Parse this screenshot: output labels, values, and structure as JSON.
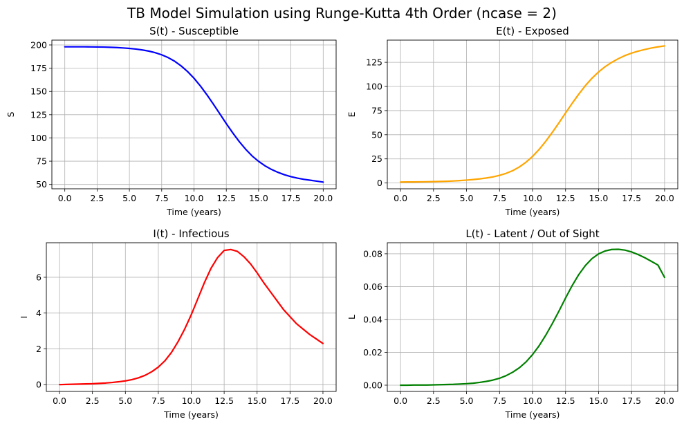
{
  "figure": {
    "suptitle": "TB Model Simulation using Runge-Kutta 4th Order (ncase = 2)"
  },
  "chart_data": [
    {
      "type": "line",
      "title": "S(t) - Susceptible",
      "xlabel": "Time (years)",
      "ylabel": "S",
      "xlim": [
        -1.0,
        21.0
      ],
      "ylim": [
        45.3,
        205.2
      ],
      "grid": true,
      "color": "#0000ff",
      "xticks": [
        0,
        2.5,
        5,
        7.5,
        10,
        12.5,
        15,
        17.5,
        20
      ],
      "xtick_labels": [
        "0.0",
        "2.5",
        "5.0",
        "7.5",
        "10.0",
        "12.5",
        "15.0",
        "17.5",
        "20.0"
      ],
      "yticks": [
        50,
        75,
        100,
        125,
        150,
        175,
        200
      ],
      "ytick_labels": [
        "50",
        "75",
        "100",
        "125",
        "150",
        "175",
        "200"
      ],
      "x": [
        0,
        0.5,
        1,
        1.5,
        2,
        2.5,
        3,
        3.5,
        4,
        4.5,
        5,
        5.5,
        6,
        6.5,
        7,
        7.5,
        8,
        8.5,
        9,
        9.5,
        10,
        10.5,
        11,
        11.5,
        12,
        12.5,
        13,
        13.5,
        14,
        14.5,
        15,
        15.5,
        16,
        16.5,
        17,
        17.5,
        18,
        18.5,
        19,
        19.5,
        20
      ],
      "y": [
        198,
        198,
        198,
        198,
        197.9,
        197.8,
        197.7,
        197.5,
        197.2,
        196.8,
        196.3,
        195.6,
        194.6,
        193.4,
        191.7,
        189.4,
        186.4,
        182.5,
        177.5,
        171.4,
        164.2,
        155.8,
        146.4,
        136.3,
        125.9,
        115.4,
        105.4,
        96.1,
        87.8,
        80.6,
        74.8,
        70.0,
        66.1,
        63.0,
        60.4,
        58.4,
        56.8,
        55.5,
        54.5,
        53.5,
        52.5
      ]
    },
    {
      "type": "line",
      "title": "E(t) - Exposed",
      "xlabel": "Time (years)",
      "ylabel": "E",
      "xlim": [
        -1.0,
        21.0
      ],
      "ylim": [
        -6.0,
        148.0
      ],
      "grid": true,
      "color": "#ffa500",
      "xticks": [
        0,
        2.5,
        5,
        7.5,
        10,
        12.5,
        15,
        17.5,
        20
      ],
      "xtick_labels": [
        "0.0",
        "2.5",
        "5.0",
        "7.5",
        "10.0",
        "12.5",
        "15.0",
        "17.5",
        "20.0"
      ],
      "yticks": [
        0,
        25,
        50,
        75,
        100,
        125
      ],
      "ytick_labels": [
        "0",
        "25",
        "50",
        "75",
        "100",
        "125"
      ],
      "x": [
        0,
        0.5,
        1,
        1.5,
        2,
        2.5,
        3,
        3.5,
        4,
        4.5,
        5,
        5.5,
        6,
        6.5,
        7,
        7.5,
        8,
        8.5,
        9,
        9.5,
        10,
        10.5,
        11,
        11.5,
        12,
        12.5,
        13,
        13.5,
        14,
        14.5,
        15,
        15.5,
        16,
        16.5,
        17,
        17.5,
        18,
        18.5,
        19,
        19.5,
        20
      ],
      "y": [
        1.0,
        1.05,
        1.1,
        1.2,
        1.3,
        1.45,
        1.6,
        1.8,
        2.1,
        2.5,
        3.0,
        3.6,
        4.3,
        5.2,
        6.3,
        7.9,
        10.0,
        12.8,
        16.6,
        21.5,
        27.5,
        34.8,
        43.2,
        52.5,
        62.3,
        72.5,
        82.5,
        92.0,
        100.8,
        108.5,
        115.0,
        120.5,
        125.0,
        128.8,
        132.0,
        134.5,
        136.6,
        138.3,
        139.8,
        141.0,
        142.0
      ]
    },
    {
      "type": "line",
      "title": "I(t) - Infectious",
      "xlabel": "Time (years)",
      "ylabel": "I",
      "xlim": [
        -1.0,
        21.0
      ],
      "ylim": [
        -0.38,
        7.93
      ],
      "grid": true,
      "color": "#ff0000",
      "xticks": [
        0,
        2.5,
        5,
        7.5,
        10,
        12.5,
        15,
        17.5,
        20
      ],
      "xtick_labels": [
        "0.0",
        "2.5",
        "5.0",
        "7.5",
        "10.0",
        "12.5",
        "15.0",
        "17.5",
        "20.0"
      ],
      "yticks": [
        0,
        2,
        4,
        6
      ],
      "ytick_labels": [
        "0",
        "2",
        "4",
        "6"
      ],
      "x": [
        0,
        0.5,
        1,
        1.5,
        2,
        2.5,
        3,
        3.5,
        4,
        4.5,
        5,
        5.5,
        6,
        6.5,
        7,
        7.5,
        8,
        8.5,
        9,
        9.5,
        10,
        10.5,
        11,
        11.5,
        12,
        12.5,
        13,
        13.5,
        14,
        14.5,
        15,
        15.5,
        16,
        16.5,
        17,
        17.5,
        18,
        18.5,
        19,
        19.5,
        20
      ],
      "y": [
        0.0,
        0.01,
        0.02,
        0.03,
        0.04,
        0.05,
        0.07,
        0.09,
        0.12,
        0.16,
        0.21,
        0.28,
        0.38,
        0.52,
        0.72,
        0.98,
        1.33,
        1.8,
        2.4,
        3.1,
        3.9,
        4.8,
        5.7,
        6.5,
        7.1,
        7.5,
        7.55,
        7.45,
        7.15,
        6.75,
        6.25,
        5.7,
        5.2,
        4.7,
        4.2,
        3.8,
        3.4,
        3.1,
        2.8,
        2.55,
        2.3
      ]
    },
    {
      "type": "line",
      "title": "L(t) - Latent / Out of Sight",
      "xlabel": "Time (years)",
      "ylabel": "L",
      "xlim": [
        -1.0,
        21.0
      ],
      "ylim": [
        -0.0038,
        0.0867
      ],
      "grid": true,
      "color": "#008000",
      "xticks": [
        0,
        2.5,
        5,
        7.5,
        10,
        12.5,
        15,
        17.5,
        20
      ],
      "xtick_labels": [
        "0.0",
        "2.5",
        "5.0",
        "7.5",
        "10.0",
        "12.5",
        "15.0",
        "17.5",
        "20.0"
      ],
      "yticks": [
        0,
        0.02,
        0.04,
        0.06,
        0.08
      ],
      "ytick_labels": [
        "0.00",
        "0.02",
        "0.04",
        "0.06",
        "0.08"
      ],
      "x": [
        0,
        0.5,
        1,
        1.5,
        2,
        2.5,
        3,
        3.5,
        4,
        4.5,
        5,
        5.5,
        6,
        6.5,
        7,
        7.5,
        8,
        8.5,
        9,
        9.5,
        10,
        10.5,
        11,
        11.5,
        12,
        12.5,
        13,
        13.5,
        14,
        14.5,
        15,
        15.5,
        16,
        16.5,
        17,
        17.5,
        18,
        18.5,
        19,
        19.5,
        20
      ],
      "y": [
        0.0,
        0.0,
        0.0001,
        0.0001,
        0.0001,
        0.0002,
        0.0003,
        0.0004,
        0.0005,
        0.0007,
        0.0009,
        0.0012,
        0.0017,
        0.0023,
        0.0031,
        0.0042,
        0.0058,
        0.0079,
        0.0106,
        0.0141,
        0.0186,
        0.024,
        0.0304,
        0.0375,
        0.0451,
        0.053,
        0.0606,
        0.0673,
        0.0728,
        0.077,
        0.0799,
        0.0817,
        0.0826,
        0.0827,
        0.0822,
        0.0811,
        0.0795,
        0.0776,
        0.0754,
        0.0731,
        0.0656
      ]
    }
  ]
}
